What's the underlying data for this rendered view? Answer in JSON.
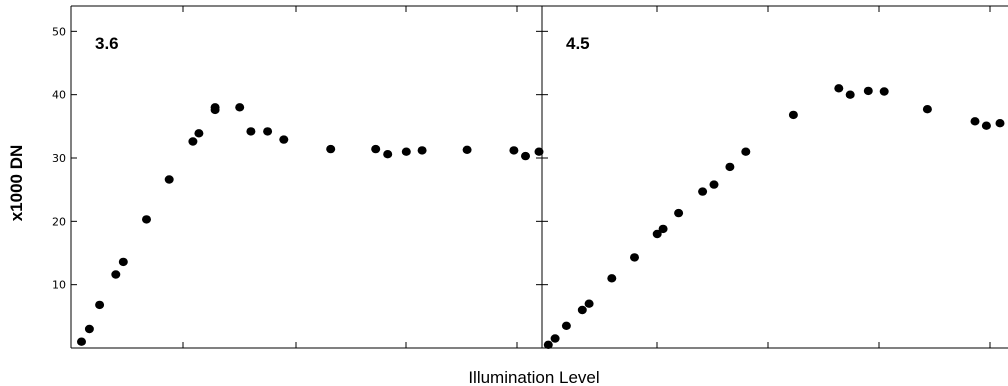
{
  "chart_data": {
    "type": "scatter",
    "ylabel": "x1000 DN",
    "xlabel": "Illumination Level",
    "ylim": [
      0,
      54
    ],
    "yticks": [
      10,
      20,
      30,
      40,
      50
    ],
    "marker_color": "#000000",
    "panels": [
      {
        "name": "3.6",
        "title": "3.6",
        "xlim": [
          0,
          1
        ],
        "points": [
          {
            "x": 0.014,
            "y": 1.0
          },
          {
            "x": 0.031,
            "y": 3.0
          },
          {
            "x": 0.053,
            "y": 6.8
          },
          {
            "x": 0.088,
            "y": 11.6
          },
          {
            "x": 0.104,
            "y": 13.6
          },
          {
            "x": 0.154,
            "y": 20.3
          },
          {
            "x": 0.203,
            "y": 26.6
          },
          {
            "x": 0.254,
            "y": 32.6
          },
          {
            "x": 0.267,
            "y": 33.9
          },
          {
            "x": 0.302,
            "y": 37.6
          },
          {
            "x": 0.302,
            "y": 38.0
          },
          {
            "x": 0.355,
            "y": 38.0
          },
          {
            "x": 0.379,
            "y": 34.2
          },
          {
            "x": 0.415,
            "y": 34.2
          },
          {
            "x": 0.45,
            "y": 32.9
          },
          {
            "x": 0.551,
            "y": 31.4
          },
          {
            "x": 0.648,
            "y": 31.4
          },
          {
            "x": 0.674,
            "y": 30.6
          },
          {
            "x": 0.714,
            "y": 31.0
          },
          {
            "x": 0.748,
            "y": 31.2
          },
          {
            "x": 0.845,
            "y": 31.3
          },
          {
            "x": 0.946,
            "y": 31.2
          },
          {
            "x": 0.971,
            "y": 30.3
          },
          {
            "x": 1.0,
            "y": 31.0
          }
        ]
      },
      {
        "name": "4.5",
        "title": "4.5",
        "xlim": [
          0,
          1
        ],
        "points": [
          {
            "x": 0.005,
            "y": 0.5
          },
          {
            "x": 0.02,
            "y": 1.5
          },
          {
            "x": 0.045,
            "y": 3.5
          },
          {
            "x": 0.08,
            "y": 6.0
          },
          {
            "x": 0.095,
            "y": 7.0
          },
          {
            "x": 0.145,
            "y": 11.0
          },
          {
            "x": 0.195,
            "y": 14.3
          },
          {
            "x": 0.245,
            "y": 18.0
          },
          {
            "x": 0.258,
            "y": 18.8
          },
          {
            "x": 0.292,
            "y": 21.3
          },
          {
            "x": 0.345,
            "y": 24.7
          },
          {
            "x": 0.37,
            "y": 25.8
          },
          {
            "x": 0.405,
            "y": 28.6
          },
          {
            "x": 0.44,
            "y": 31.0
          },
          {
            "x": 0.545,
            "y": 36.8
          },
          {
            "x": 0.645,
            "y": 41.0
          },
          {
            "x": 0.67,
            "y": 40.0
          },
          {
            "x": 0.71,
            "y": 40.6
          },
          {
            "x": 0.745,
            "y": 40.5
          },
          {
            "x": 0.84,
            "y": 37.7
          },
          {
            "x": 0.945,
            "y": 35.8
          },
          {
            "x": 0.97,
            "y": 35.1
          },
          {
            "x": 1.0,
            "y": 35.5
          }
        ]
      }
    ]
  }
}
